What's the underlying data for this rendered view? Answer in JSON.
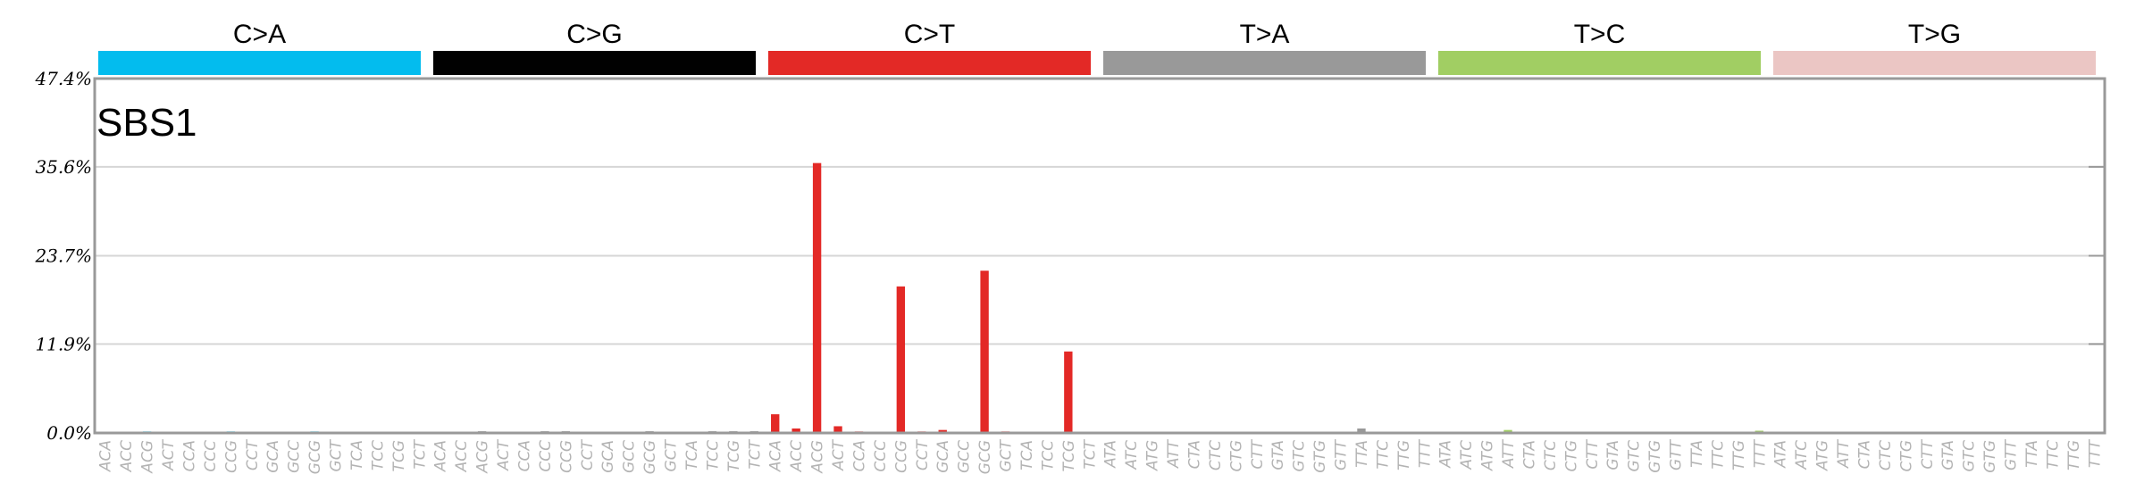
{
  "chart_data": {
    "type": "bar",
    "title": "SBS1",
    "ylim": [
      0,
      47.4
    ],
    "yticks": [
      "0.0%",
      "11.9%",
      "23.7%",
      "35.6%",
      "47.4%"
    ],
    "ytick_values": [
      0,
      11.9,
      23.7,
      35.6,
      47.4
    ],
    "grid": true,
    "mutation_types": [
      {
        "name": "C>A",
        "color": "#03bcee"
      },
      {
        "name": "C>G",
        "color": "#010101"
      },
      {
        "name": "C>T",
        "color": "#e32926"
      },
      {
        "name": "T>A",
        "color": "#999999"
      },
      {
        "name": "T>C",
        "color": "#a1ce63"
      },
      {
        "name": "T>G",
        "color": "#ebc6c4"
      }
    ],
    "categories": [
      "ACA",
      "ACC",
      "ACG",
      "ACT",
      "CCA",
      "CCC",
      "CCG",
      "CCT",
      "GCA",
      "GCC",
      "GCG",
      "GCT",
      "TCA",
      "TCC",
      "TCG",
      "TCT",
      "ACA",
      "ACC",
      "ACG",
      "ACT",
      "CCA",
      "CCC",
      "CCG",
      "CCT",
      "GCA",
      "GCC",
      "GCG",
      "GCT",
      "TCA",
      "TCC",
      "TCG",
      "TCT",
      "ACA",
      "ACC",
      "ACG",
      "ACT",
      "CCA",
      "CCC",
      "CCG",
      "CCT",
      "GCA",
      "GCC",
      "GCG",
      "GCT",
      "TCA",
      "TCC",
      "TCG",
      "TCT",
      "ATA",
      "ATC",
      "ATG",
      "ATT",
      "CTA",
      "CTC",
      "CTG",
      "CTT",
      "GTA",
      "GTC",
      "GTG",
      "GTT",
      "TTA",
      "TTC",
      "TTG",
      "TTT",
      "ATA",
      "ATC",
      "ATG",
      "ATT",
      "CTA",
      "CTC",
      "CTG",
      "CTT",
      "GTA",
      "GTC",
      "GTG",
      "GTT",
      "TTA",
      "TTC",
      "TTG",
      "TTT",
      "ATA",
      "ATC",
      "ATG",
      "ATT",
      "CTA",
      "CTC",
      "CTG",
      "CTT",
      "GTA",
      "GTC",
      "GTG",
      "GTT",
      "TTA",
      "TTC",
      "TTG",
      "TTT"
    ],
    "values": [
      0.1,
      0.1,
      0.2,
      0.1,
      0.1,
      0.1,
      0.2,
      0.1,
      0.1,
      0.1,
      0.2,
      0.1,
      0.1,
      0.1,
      0.1,
      0.1,
      0.1,
      0.1,
      0.2,
      0.1,
      0.1,
      0.2,
      0.2,
      0.1,
      0.1,
      0.1,
      0.2,
      0.1,
      0.1,
      0.2,
      0.2,
      0.2,
      2.5,
      0.6,
      36.1,
      0.9,
      0.2,
      0.1,
      19.6,
      0.2,
      0.4,
      0.1,
      21.7,
      0.2,
      0.1,
      0.1,
      10.9,
      0.1,
      0.1,
      0.1,
      0.1,
      0.1,
      0.1,
      0.1,
      0.1,
      0.1,
      0.1,
      0.1,
      0.1,
      0.1,
      0.6,
      0.1,
      0.1,
      0.1,
      0.1,
      0.1,
      0.1,
      0.4,
      0.1,
      0.1,
      0.1,
      0.1,
      0.1,
      0.1,
      0.1,
      0.1,
      0.1,
      0.1,
      0.1,
      0.3,
      0.1,
      0.1,
      0.1,
      0.1,
      0.1,
      0.1,
      0.1,
      0.1,
      0.1,
      0.1,
      0.1,
      0.1,
      0.1,
      0.1,
      0.1,
      0.1
    ]
  }
}
